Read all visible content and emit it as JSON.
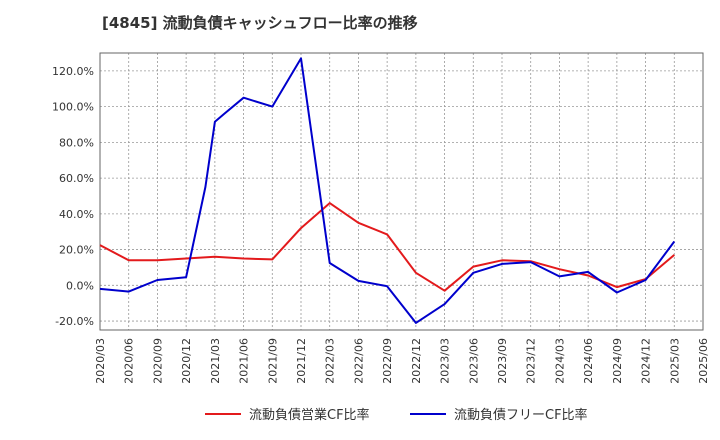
{
  "chart_data": {
    "type": "line",
    "title": "[4845]  流動負債キャッシュフロー比率の推移",
    "xlabel": "",
    "ylabel": "",
    "ylim": [
      -25,
      130
    ],
    "yticks": [
      -20,
      0,
      20,
      40,
      60,
      80,
      100,
      120
    ],
    "ytick_labels": [
      "-20.0%",
      "0.0%",
      "20.0%",
      "40.0%",
      "60.0%",
      "80.0%",
      "100.0%",
      "120.0%"
    ],
    "xtick_labels": [
      "2020/03",
      "2020/06",
      "2020/09",
      "2020/12",
      "2021/03",
      "2021/06",
      "2021/09",
      "2021/12",
      "2022/03",
      "2022/06",
      "2022/09",
      "2022/12",
      "2023/03",
      "2023/06",
      "2023/09",
      "2023/12",
      "2024/03",
      "2024/06",
      "2024/09",
      "2024/12",
      "2025/03",
      "2025/06"
    ],
    "grid": true,
    "legend_position": "bottom",
    "series": [
      {
        "name": "流動負債営業CF比率",
        "color": "#e31a1c",
        "points": [
          [
            0,
            22.5
          ],
          [
            1,
            14
          ],
          [
            2,
            14
          ],
          [
            3,
            15
          ],
          [
            4,
            16
          ],
          [
            5,
            15
          ],
          [
            6,
            14.5
          ],
          [
            7,
            32
          ],
          [
            8,
            46
          ],
          [
            9,
            35
          ],
          [
            10,
            28.5
          ],
          [
            11,
            7
          ],
          [
            12,
            -3
          ],
          [
            13,
            10.5
          ],
          [
            14,
            14
          ],
          [
            15,
            13.5
          ],
          [
            16,
            9
          ],
          [
            17,
            5.5
          ],
          [
            18,
            -1
          ],
          [
            19,
            3.5
          ],
          [
            20,
            17
          ]
        ]
      },
      {
        "name": "流動負債フリーCF比率",
        "color": "#0000cc",
        "points": [
          [
            0,
            -2
          ],
          [
            1,
            -3.5
          ],
          [
            2,
            3
          ],
          [
            3,
            4.5
          ],
          [
            3.67,
            55
          ],
          [
            4,
            91.5
          ],
          [
            4.33,
            96
          ],
          [
            5,
            105
          ],
          [
            6,
            100
          ],
          [
            7,
            127
          ],
          [
            8,
            12.5
          ],
          [
            9,
            2.5
          ],
          [
            10,
            -0.5
          ],
          [
            11,
            -21
          ],
          [
            12,
            -10.5
          ],
          [
            13,
            7
          ],
          [
            14,
            12
          ],
          [
            15,
            13
          ],
          [
            16,
            5
          ],
          [
            17,
            7.5
          ],
          [
            18,
            -4
          ],
          [
            19,
            3
          ],
          [
            20,
            24.5
          ]
        ]
      }
    ]
  }
}
